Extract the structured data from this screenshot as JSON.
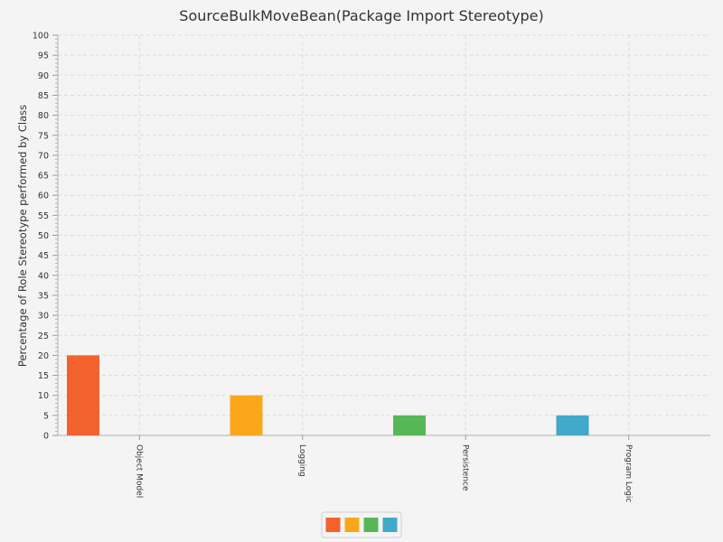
{
  "chart_data": {
    "type": "bar",
    "title": "SourceBulkMoveBean(Package Import Stereotype)",
    "xlabel": "",
    "ylabel": "Percentage of Role Stereotype performed by Class",
    "ylim": [
      0,
      100
    ],
    "y_ticks": [
      "0",
      "5",
      "10",
      "15",
      "20",
      "25",
      "30",
      "35",
      "40",
      "45",
      "50",
      "55",
      "60",
      "65",
      "70",
      "75",
      "80",
      "85",
      "90",
      "95",
      "100"
    ],
    "categories": [
      "Object Model",
      "Logging",
      "Persistence",
      "Program Logic"
    ],
    "values": [
      20,
      10,
      5,
      5
    ],
    "colors": [
      "#f3622d",
      "#fba71b",
      "#57b757",
      "#41a9c9"
    ],
    "grid": true,
    "legend": "bottom-center"
  }
}
